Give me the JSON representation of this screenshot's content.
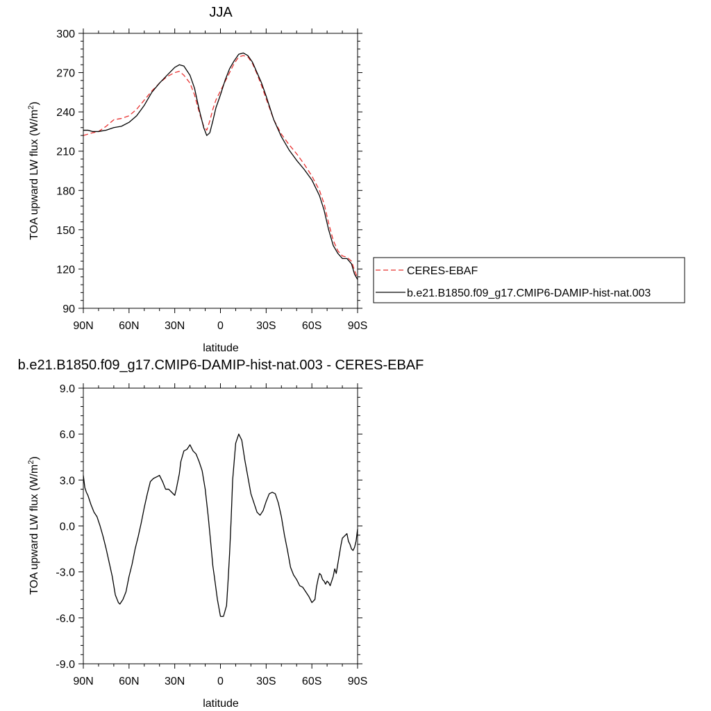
{
  "chart_data": [
    {
      "type": "line",
      "title": "JJA",
      "xlabel": "latitude",
      "ylabel": "TOA upward LW flux (W/m",
      "ylabel_sup": "2",
      "ylabel_end": ")",
      "xlim": [
        90,
        -90
      ],
      "ylim": [
        90,
        300
      ],
      "x_ticks": [
        90,
        60,
        30,
        0,
        -30,
        -60,
        -90
      ],
      "x_tick_labels": [
        "90N",
        "60N",
        "30N",
        "0",
        "30S",
        "60S",
        "90S"
      ],
      "y_ticks": [
        90,
        120,
        150,
        180,
        210,
        240,
        270,
        300
      ],
      "y_tick_labels": [
        "90",
        "120",
        "150",
        "180",
        "210",
        "240",
        "270",
        "300"
      ],
      "grid": false,
      "legend": "right",
      "series": [
        {
          "name": "CERES-EBAF",
          "color": "#e8302f",
          "dash": "dashed",
          "x": [
            90,
            87,
            84,
            80,
            75,
            70,
            65,
            60,
            55,
            50,
            45,
            40,
            35,
            30,
            27,
            24,
            20,
            17,
            14,
            11,
            9,
            7,
            5,
            3,
            0,
            -3,
            -6,
            -9,
            -12,
            -15,
            -18,
            -21,
            -24,
            -27,
            -30,
            -35,
            -40,
            -45,
            -50,
            -55,
            -60,
            -65,
            -68,
            -71,
            -74,
            -77,
            -80,
            -83,
            -86,
            -88,
            -90
          ],
          "y": [
            222,
            223,
            224,
            225,
            229,
            234,
            235,
            237,
            242,
            249,
            256,
            262,
            267,
            270,
            271,
            268,
            262,
            253,
            240,
            229,
            226,
            233,
            242,
            249,
            256,
            263,
            270,
            277,
            282,
            283,
            282,
            277,
            269,
            260,
            250,
            234,
            223,
            215,
            208,
            200,
            191,
            180,
            170,
            155,
            142,
            134,
            130,
            129,
            126,
            119,
            113
          ]
        },
        {
          "name": "b.e21.B1850.f09_g17.CMIP6-DAMIP-hist-nat.003",
          "color": "#000000",
          "dash": "solid",
          "x": [
            90,
            87,
            84,
            80,
            75,
            70,
            65,
            60,
            55,
            50,
            45,
            40,
            35,
            30,
            27,
            24,
            20,
            17,
            14,
            11,
            9,
            7,
            5,
            3,
            0,
            -3,
            -6,
            -9,
            -12,
            -15,
            -18,
            -21,
            -24,
            -27,
            -30,
            -35,
            -40,
            -45,
            -50,
            -55,
            -60,
            -65,
            -68,
            -71,
            -74,
            -77,
            -80,
            -83,
            -86,
            -88,
            -90
          ],
          "y": [
            226,
            226,
            225,
            225,
            226,
            228,
            229,
            232,
            237,
            245,
            255,
            262,
            268,
            274,
            276,
            275,
            268,
            258,
            242,
            228,
            222,
            224,
            233,
            243,
            253,
            264,
            273,
            279,
            284,
            285,
            283,
            278,
            270,
            262,
            252,
            234,
            221,
            211,
            203,
            196,
            188,
            176,
            165,
            150,
            138,
            132,
            128,
            128,
            124,
            116,
            112
          ]
        }
      ]
    },
    {
      "type": "line",
      "title": "b.e21.B1850.f09_g17.CMIP6-DAMIP-hist-nat.003 - CERES-EBAF",
      "xlabel": "latitude",
      "ylabel": "TOA upward LW flux (W/m",
      "ylabel_sup": "2",
      "ylabel_end": ")",
      "xlim": [
        90,
        -90
      ],
      "ylim": [
        -9,
        9
      ],
      "x_ticks": [
        90,
        60,
        30,
        0,
        -30,
        -60,
        -90
      ],
      "x_tick_labels": [
        "90N",
        "60N",
        "30N",
        "0",
        "30S",
        "60S",
        "90S"
      ],
      "y_ticks": [
        -9,
        -6,
        -3,
        0,
        3,
        6,
        9
      ],
      "y_tick_labels": [
        "-9.0",
        "-6.0",
        "-3.0",
        "0.0",
        "3.0",
        "6.0",
        "9.0"
      ],
      "grid": false,
      "series": [
        {
          "color": "#000000",
          "dash": "solid",
          "x": [
            90,
            89,
            88,
            87,
            85,
            83,
            81,
            79,
            77,
            75,
            73,
            71,
            69,
            67,
            66,
            64,
            62,
            60,
            58,
            56,
            54,
            52,
            50,
            48,
            46,
            44,
            42,
            40,
            38,
            36,
            34,
            32,
            30,
            29,
            28,
            27,
            26,
            24,
            22,
            20,
            18,
            16,
            14,
            12,
            10,
            8,
            6,
            5,
            4,
            2,
            0,
            -2,
            -4,
            -5,
            -6,
            -7,
            -8,
            -10,
            -12,
            -14,
            -16,
            -18,
            -20,
            -22,
            -24,
            -26,
            -28,
            -30,
            -32,
            -34,
            -36,
            -38,
            -40,
            -42,
            -44,
            -46,
            -48,
            -50,
            -52,
            -54,
            -56,
            -58,
            -60,
            -62,
            -63,
            -64,
            -65,
            -66,
            -67,
            -68,
            -69,
            -70,
            -71,
            -72,
            -74,
            -75,
            -76,
            -77,
            -78,
            -79,
            -80,
            -81,
            -82,
            -83,
            -84,
            -85,
            -86,
            -87,
            -88,
            -89,
            -90
          ],
          "y": [
            3.3,
            2.5,
            2.2,
            2.0,
            1.4,
            0.9,
            0.6,
            0.0,
            -0.7,
            -1.5,
            -2.4,
            -3.3,
            -4.5,
            -5.0,
            -5.1,
            -4.8,
            -4.3,
            -3.3,
            -2.5,
            -1.5,
            -0.7,
            0.2,
            1.2,
            2.1,
            2.9,
            3.1,
            3.2,
            3.3,
            2.9,
            2.4,
            2.4,
            2.2,
            2.0,
            2.4,
            2.9,
            3.4,
            4.2,
            4.9,
            5.0,
            5.3,
            4.9,
            4.7,
            4.2,
            3.6,
            2.4,
            0.6,
            -1.5,
            -2.6,
            -3.3,
            -4.8,
            -5.9,
            -5.9,
            -5.2,
            -3.6,
            -1.8,
            0.4,
            3.0,
            5.4,
            6.0,
            5.6,
            4.3,
            3.2,
            2.1,
            1.5,
            0.9,
            0.7,
            1.0,
            1.6,
            2.1,
            2.2,
            2.1,
            1.5,
            0.6,
            -0.6,
            -1.6,
            -2.7,
            -3.2,
            -3.5,
            -3.9,
            -4.0,
            -4.3,
            -4.6,
            -5.0,
            -4.8,
            -4.0,
            -3.5,
            -3.1,
            -3.2,
            -3.5,
            -3.6,
            -3.8,
            -3.6,
            -3.7,
            -3.9,
            -3.3,
            -2.8,
            -3.1,
            -2.5,
            -1.9,
            -1.3,
            -0.8,
            -0.7,
            -0.6,
            -0.5,
            -1.0,
            -1.2,
            -1.5,
            -1.6,
            -1.4,
            -1.0,
            -0.2
          ]
        }
      ]
    }
  ]
}
